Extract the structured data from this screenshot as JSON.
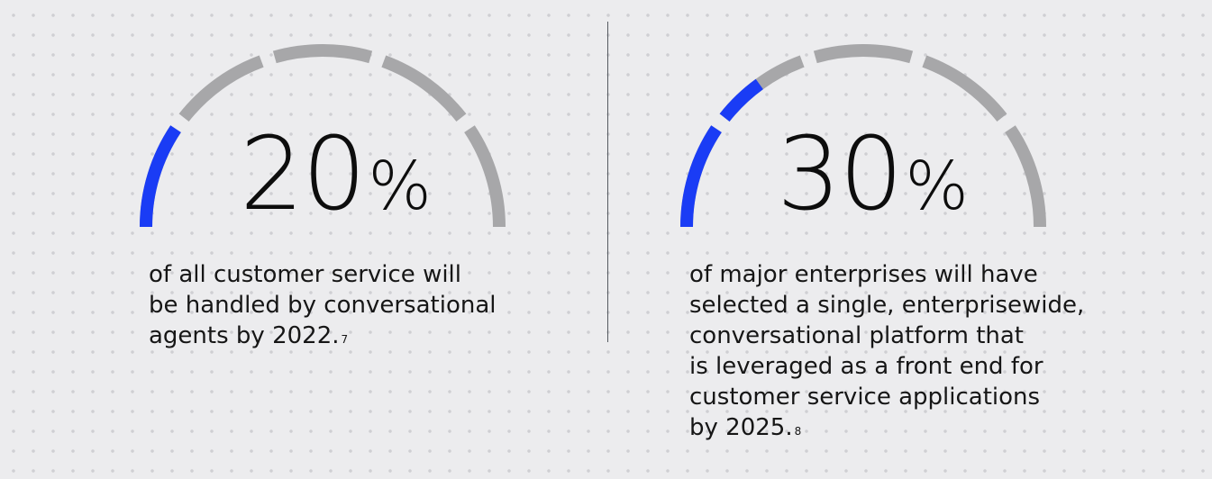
{
  "colors": {
    "accent": "#1a3cf5",
    "track": "#a7a7a9",
    "background": "#ececee",
    "text": "#111111"
  },
  "stats": [
    {
      "value": "20",
      "unit": "%",
      "fill_fraction": 0.2,
      "description_lines": [
        "of all customer service will",
        "be handled by conversational",
        "agents by 2022."
      ],
      "footnote": "7"
    },
    {
      "value": "30",
      "unit": "%",
      "fill_fraction": 0.3,
      "description_lines": [
        "of major enterprises will have",
        "selected a single, enterprisewide,",
        "conversational platform that",
        "is leveraged as a front end for",
        "customer service applications",
        "by 2025."
      ],
      "footnote": "8"
    }
  ]
}
